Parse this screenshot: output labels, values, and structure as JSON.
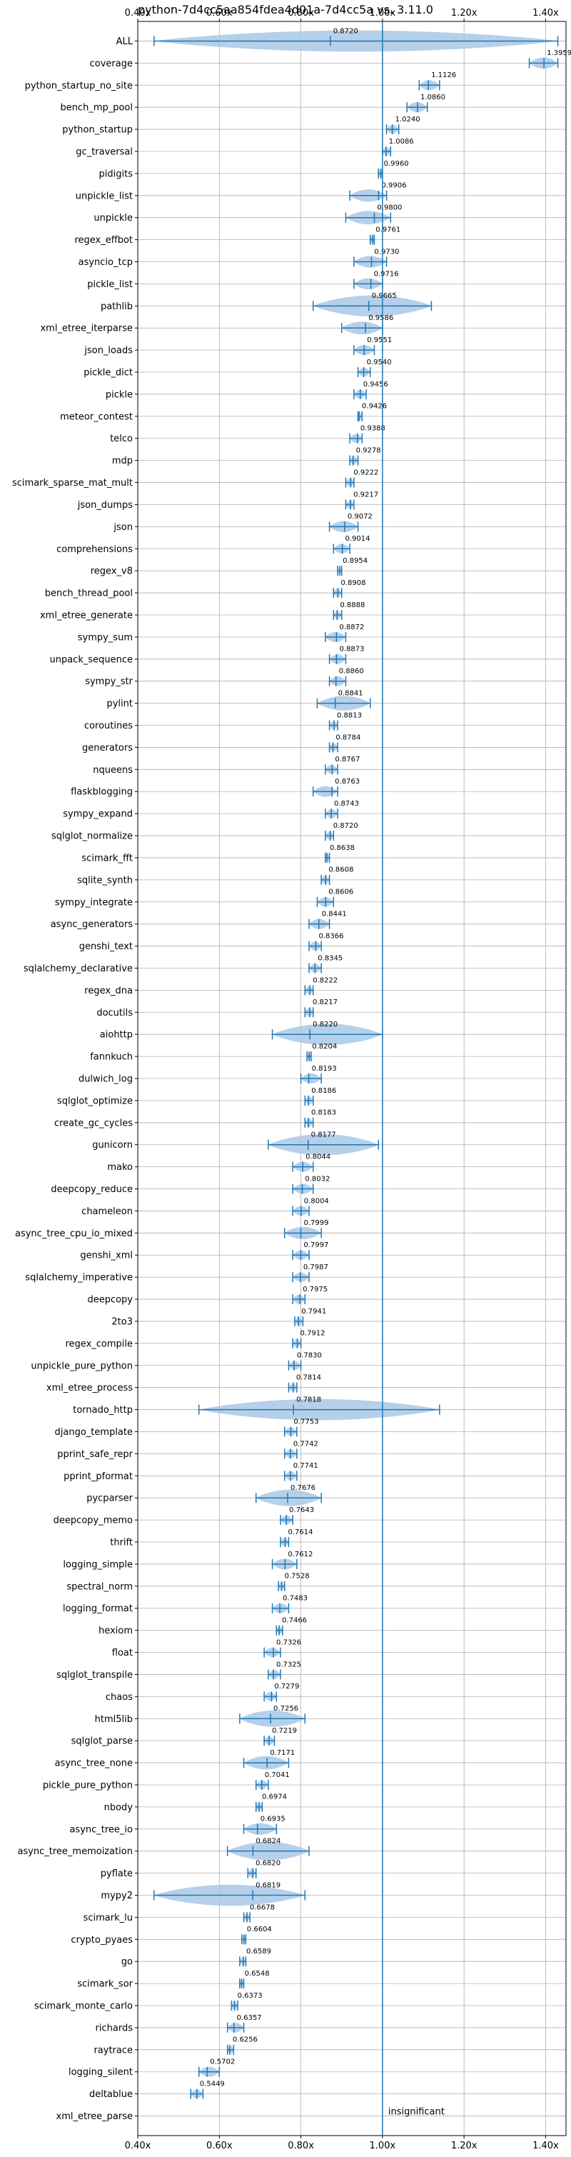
{
  "chart_data": {
    "type": "violin",
    "title": "python-7d4cc5aa854fdea4d01a-7d4cc5a vs. 3.11.0",
    "xlim": [
      0.4,
      1.45
    ],
    "xticks": [
      0.4,
      0.6,
      0.8,
      1.0,
      1.2,
      1.4
    ],
    "xtick_labels": [
      "0.40x",
      "0.60x",
      "0.80x",
      "1.00x",
      "1.20x",
      "1.40x"
    ],
    "grid": true,
    "reference_line": 1.0,
    "annotation": "insignificant",
    "colors": {
      "violin_fill": "#a9c8e6",
      "line": "#1f77b4",
      "grid": "#b0b0b0"
    },
    "benchmarks": [
      {
        "name": "ALL",
        "value": 0.872,
        "label": "0.8720",
        "min": 0.44,
        "max": 1.43
      },
      {
        "name": "coverage",
        "value": 1.3959,
        "label": "1.3959",
        "min": 1.36,
        "max": 1.43
      },
      {
        "name": "python_startup_no_site",
        "value": 1.1126,
        "label": "1.1126",
        "min": 1.09,
        "max": 1.14
      },
      {
        "name": "bench_mp_pool",
        "value": 1.086,
        "label": "1.0860",
        "min": 1.06,
        "max": 1.11
      },
      {
        "name": "python_startup",
        "value": 1.024,
        "label": "1.0240",
        "min": 1.01,
        "max": 1.04
      },
      {
        "name": "gc_traversal",
        "value": 1.0086,
        "label": "1.0086",
        "min": 1.0,
        "max": 1.02
      },
      {
        "name": "pidigits",
        "value": 0.996,
        "label": "0.9960",
        "min": 0.99,
        "max": 1.0
      },
      {
        "name": "unpickle_list",
        "value": 0.9906,
        "label": "0.9906",
        "min": 0.92,
        "max": 1.01
      },
      {
        "name": "unpickle",
        "value": 0.98,
        "label": "0.9800",
        "min": 0.91,
        "max": 1.02
      },
      {
        "name": "regex_effbot",
        "value": 0.9761,
        "label": "0.9761",
        "min": 0.97,
        "max": 0.98
      },
      {
        "name": "asyncio_tcp",
        "value": 0.973,
        "label": "0.9730",
        "min": 0.93,
        "max": 1.01
      },
      {
        "name": "pickle_list",
        "value": 0.9716,
        "label": "0.9716",
        "min": 0.93,
        "max": 1.0
      },
      {
        "name": "pathlib",
        "value": 0.9665,
        "label": "0.9665",
        "min": 0.83,
        "max": 1.12
      },
      {
        "name": "xml_etree_iterparse",
        "value": 0.9586,
        "label": "0.9586",
        "min": 0.9,
        "max": 1.0
      },
      {
        "name": "json_loads",
        "value": 0.9551,
        "label": "0.9551",
        "min": 0.93,
        "max": 0.98
      },
      {
        "name": "pickle_dict",
        "value": 0.954,
        "label": "0.9540",
        "min": 0.94,
        "max": 0.97
      },
      {
        "name": "pickle",
        "value": 0.9456,
        "label": "0.9456",
        "min": 0.93,
        "max": 0.96
      },
      {
        "name": "meteor_contest",
        "value": 0.9426,
        "label": "0.9426",
        "min": 0.94,
        "max": 0.95
      },
      {
        "name": "telco",
        "value": 0.9388,
        "label": "0.9388",
        "min": 0.92,
        "max": 0.95
      },
      {
        "name": "mdp",
        "value": 0.9278,
        "label": "0.9278",
        "min": 0.92,
        "max": 0.94
      },
      {
        "name": "scimark_sparse_mat_mult",
        "value": 0.9222,
        "label": "0.9222",
        "min": 0.91,
        "max": 0.93
      },
      {
        "name": "json_dumps",
        "value": 0.9217,
        "label": "0.9217",
        "min": 0.91,
        "max": 0.93
      },
      {
        "name": "json",
        "value": 0.9072,
        "label": "0.9072",
        "min": 0.87,
        "max": 0.94
      },
      {
        "name": "comprehensions",
        "value": 0.9014,
        "label": "0.9014",
        "min": 0.88,
        "max": 0.92
      },
      {
        "name": "regex_v8",
        "value": 0.8954,
        "label": "0.8954",
        "min": 0.89,
        "max": 0.9
      },
      {
        "name": "bench_thread_pool",
        "value": 0.8908,
        "label": "0.8908",
        "min": 0.88,
        "max": 0.9
      },
      {
        "name": "xml_etree_generate",
        "value": 0.8888,
        "label": "0.8888",
        "min": 0.88,
        "max": 0.9
      },
      {
        "name": "sympy_sum",
        "value": 0.8872,
        "label": "0.8872",
        "min": 0.86,
        "max": 0.91
      },
      {
        "name": "unpack_sequence",
        "value": 0.8873,
        "label": "0.8873",
        "min": 0.87,
        "max": 0.91
      },
      {
        "name": "sympy_str",
        "value": 0.886,
        "label": "0.8860",
        "min": 0.87,
        "max": 0.91
      },
      {
        "name": "pylint",
        "value": 0.8841,
        "label": "0.8841",
        "min": 0.84,
        "max": 0.97
      },
      {
        "name": "coroutines",
        "value": 0.8813,
        "label": "0.8813",
        "min": 0.87,
        "max": 0.89
      },
      {
        "name": "generators",
        "value": 0.8784,
        "label": "0.8784",
        "min": 0.87,
        "max": 0.89
      },
      {
        "name": "nqueens",
        "value": 0.8767,
        "label": "0.8767",
        "min": 0.86,
        "max": 0.89
      },
      {
        "name": "flaskblogging",
        "value": 0.8763,
        "label": "0.8763",
        "min": 0.83,
        "max": 0.89
      },
      {
        "name": "sympy_expand",
        "value": 0.8743,
        "label": "0.8743",
        "min": 0.86,
        "max": 0.89
      },
      {
        "name": "sqlglot_normalize",
        "value": 0.872,
        "label": "0.8720",
        "min": 0.86,
        "max": 0.88
      },
      {
        "name": "scimark_fft",
        "value": 0.8638,
        "label": "0.8638",
        "min": 0.86,
        "max": 0.87
      },
      {
        "name": "sqlite_synth",
        "value": 0.8608,
        "label": "0.8608",
        "min": 0.85,
        "max": 0.87
      },
      {
        "name": "sympy_integrate",
        "value": 0.8606,
        "label": "0.8606",
        "min": 0.84,
        "max": 0.88
      },
      {
        "name": "async_generators",
        "value": 0.8441,
        "label": "0.8441",
        "min": 0.82,
        "max": 0.87
      },
      {
        "name": "genshi_text",
        "value": 0.8366,
        "label": "0.8366",
        "min": 0.82,
        "max": 0.85
      },
      {
        "name": "sqlalchemy_declarative",
        "value": 0.8345,
        "label": "0.8345",
        "min": 0.82,
        "max": 0.85
      },
      {
        "name": "regex_dna",
        "value": 0.8222,
        "label": "0.8222",
        "min": 0.81,
        "max": 0.83
      },
      {
        "name": "docutils",
        "value": 0.8217,
        "label": "0.8217",
        "min": 0.81,
        "max": 0.83
      },
      {
        "name": "aiohttp",
        "value": 0.822,
        "label": "0.8220",
        "min": 0.73,
        "max": 1.0
      },
      {
        "name": "fannkuch",
        "value": 0.8204,
        "label": "0.8204",
        "min": 0.815,
        "max": 0.825
      },
      {
        "name": "dulwich_log",
        "value": 0.8193,
        "label": "0.8193",
        "min": 0.8,
        "max": 0.85
      },
      {
        "name": "sqlglot_optimize",
        "value": 0.8186,
        "label": "0.8186",
        "min": 0.81,
        "max": 0.83
      },
      {
        "name": "create_gc_cycles",
        "value": 0.8183,
        "label": "0.8183",
        "min": 0.81,
        "max": 0.83
      },
      {
        "name": "gunicorn",
        "value": 0.8177,
        "label": "0.8177",
        "min": 0.72,
        "max": 0.99
      },
      {
        "name": "mako",
        "value": 0.8044,
        "label": "0.8044",
        "min": 0.78,
        "max": 0.83
      },
      {
        "name": "deepcopy_reduce",
        "value": 0.8032,
        "label": "0.8032",
        "min": 0.78,
        "max": 0.83
      },
      {
        "name": "chameleon",
        "value": 0.8004,
        "label": "0.8004",
        "min": 0.78,
        "max": 0.82
      },
      {
        "name": "async_tree_cpu_io_mixed",
        "value": 0.7999,
        "label": "0.7999",
        "min": 0.76,
        "max": 0.85
      },
      {
        "name": "genshi_xml",
        "value": 0.7997,
        "label": "0.7997",
        "min": 0.78,
        "max": 0.82
      },
      {
        "name": "sqlalchemy_imperative",
        "value": 0.7987,
        "label": "0.7987",
        "min": 0.78,
        "max": 0.82
      },
      {
        "name": "deepcopy",
        "value": 0.7975,
        "label": "0.7975",
        "min": 0.78,
        "max": 0.81
      },
      {
        "name": "2to3",
        "value": 0.7941,
        "label": "0.7941",
        "min": 0.785,
        "max": 0.805
      },
      {
        "name": "regex_compile",
        "value": 0.7912,
        "label": "0.7912",
        "min": 0.78,
        "max": 0.8
      },
      {
        "name": "unpickle_pure_python",
        "value": 0.783,
        "label": "0.7830",
        "min": 0.77,
        "max": 0.8
      },
      {
        "name": "xml_etree_process",
        "value": 0.7814,
        "label": "0.7814",
        "min": 0.77,
        "max": 0.79
      },
      {
        "name": "tornado_http",
        "value": 0.7818,
        "label": "0.7818",
        "min": 0.55,
        "max": 1.14
      },
      {
        "name": "django_template",
        "value": 0.7753,
        "label": "0.7753",
        "min": 0.76,
        "max": 0.79
      },
      {
        "name": "pprint_safe_repr",
        "value": 0.7742,
        "label": "0.7742",
        "min": 0.76,
        "max": 0.79
      },
      {
        "name": "pprint_pformat",
        "value": 0.7741,
        "label": "0.7741",
        "min": 0.76,
        "max": 0.79
      },
      {
        "name": "pycparser",
        "value": 0.7676,
        "label": "0.7676",
        "min": 0.69,
        "max": 0.85
      },
      {
        "name": "deepcopy_memo",
        "value": 0.7643,
        "label": "0.7643",
        "min": 0.75,
        "max": 0.78
      },
      {
        "name": "thrift",
        "value": 0.7614,
        "label": "0.7614",
        "min": 0.75,
        "max": 0.77
      },
      {
        "name": "logging_simple",
        "value": 0.7612,
        "label": "0.7612",
        "min": 0.73,
        "max": 0.79
      },
      {
        "name": "spectral_norm",
        "value": 0.7528,
        "label": "0.7528",
        "min": 0.745,
        "max": 0.76
      },
      {
        "name": "logging_format",
        "value": 0.7483,
        "label": "0.7483",
        "min": 0.73,
        "max": 0.77
      },
      {
        "name": "hexiom",
        "value": 0.7466,
        "label": "0.7466",
        "min": 0.74,
        "max": 0.755
      },
      {
        "name": "float",
        "value": 0.7326,
        "label": "0.7326",
        "min": 0.71,
        "max": 0.75
      },
      {
        "name": "sqlglot_transpile",
        "value": 0.7325,
        "label": "0.7325",
        "min": 0.72,
        "max": 0.75
      },
      {
        "name": "chaos",
        "value": 0.7279,
        "label": "0.7279",
        "min": 0.71,
        "max": 0.74
      },
      {
        "name": "html5lib",
        "value": 0.7256,
        "label": "0.7256",
        "min": 0.65,
        "max": 0.81
      },
      {
        "name": "sqlglot_parse",
        "value": 0.7219,
        "label": "0.7219",
        "min": 0.71,
        "max": 0.735
      },
      {
        "name": "async_tree_none",
        "value": 0.7171,
        "label": "0.7171",
        "min": 0.66,
        "max": 0.77
      },
      {
        "name": "pickle_pure_python",
        "value": 0.7041,
        "label": "0.7041",
        "min": 0.69,
        "max": 0.72
      },
      {
        "name": "nbody",
        "value": 0.6974,
        "label": "0.6974",
        "min": 0.69,
        "max": 0.705
      },
      {
        "name": "async_tree_io",
        "value": 0.6935,
        "label": "0.6935",
        "min": 0.66,
        "max": 0.74
      },
      {
        "name": "async_tree_memoization",
        "value": 0.6824,
        "label": "0.6824",
        "min": 0.62,
        "max": 0.82
      },
      {
        "name": "pyflate",
        "value": 0.682,
        "label": "0.6820",
        "min": 0.67,
        "max": 0.69
      },
      {
        "name": "mypy2",
        "value": 0.6819,
        "label": "0.6819",
        "min": 0.44,
        "max": 0.81
      },
      {
        "name": "scimark_lu",
        "value": 0.6678,
        "label": "0.6678",
        "min": 0.66,
        "max": 0.675
      },
      {
        "name": "crypto_pyaes",
        "value": 0.6604,
        "label": "0.6604",
        "min": 0.655,
        "max": 0.665
      },
      {
        "name": "go",
        "value": 0.6589,
        "label": "0.6589",
        "min": 0.65,
        "max": 0.665
      },
      {
        "name": "scimark_sor",
        "value": 0.6548,
        "label": "0.6548",
        "min": 0.65,
        "max": 0.66
      },
      {
        "name": "scimark_monte_carlo",
        "value": 0.6373,
        "label": "0.6373",
        "min": 0.63,
        "max": 0.645
      },
      {
        "name": "richards",
        "value": 0.6357,
        "label": "0.6357",
        "min": 0.62,
        "max": 0.66
      },
      {
        "name": "raytrace",
        "value": 0.6256,
        "label": "0.6256",
        "min": 0.62,
        "max": 0.635
      },
      {
        "name": "logging_silent",
        "value": 0.5702,
        "label": "0.5702",
        "min": 0.55,
        "max": 0.6
      },
      {
        "name": "deltablue",
        "value": 0.5449,
        "label": "0.5449",
        "min": 0.53,
        "max": 0.56
      },
      {
        "name": "xml_etree_parse",
        "value": null,
        "label": "",
        "min": null,
        "max": null
      }
    ]
  }
}
